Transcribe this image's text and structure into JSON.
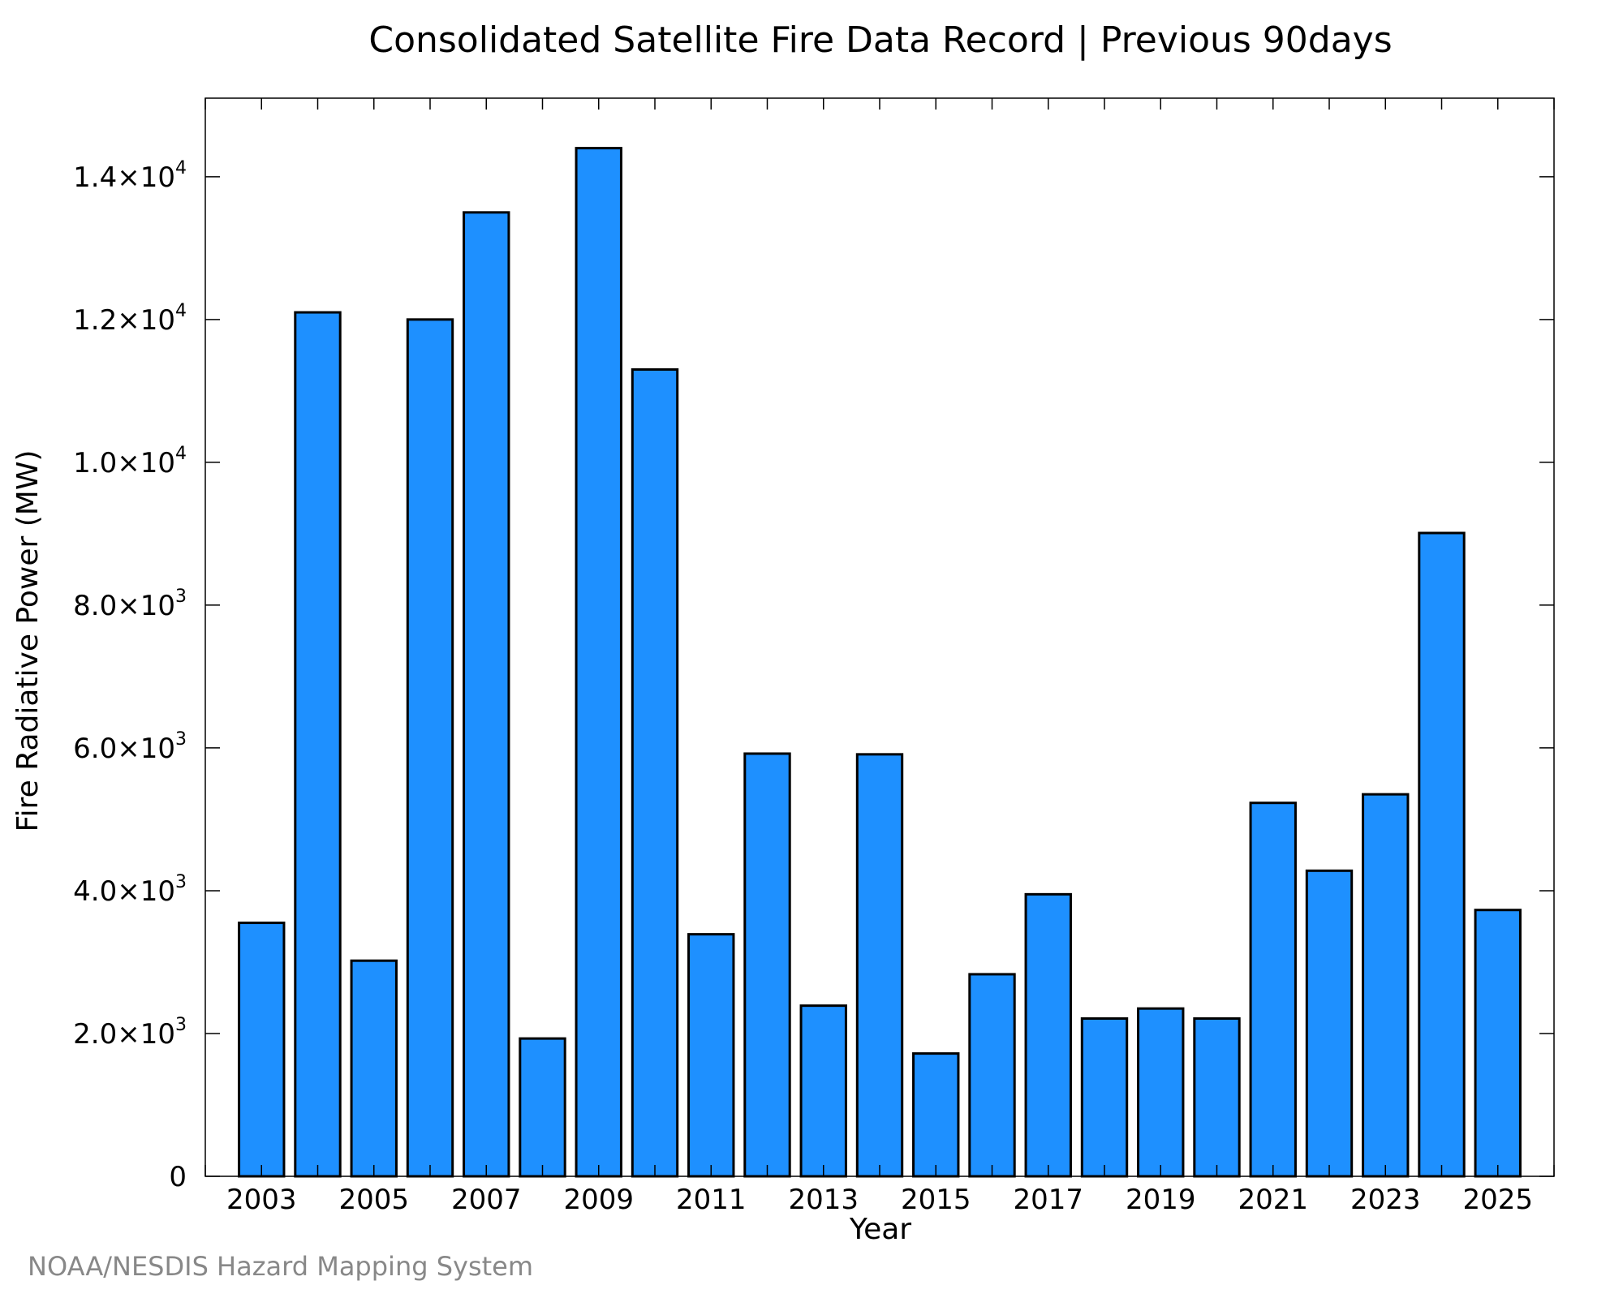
{
  "chart_data": {
    "type": "bar",
    "title": "Consolidated Satellite Fire Data Record | Previous 90days",
    "xlabel": "Year",
    "ylabel": "Fire Radiative Power (MW)",
    "credit": "NOAA/NESDIS Hazard Mapping System",
    "categories": [
      "2003",
      "2004",
      "2005",
      "2006",
      "2007",
      "2008",
      "2009",
      "2010",
      "2011",
      "2012",
      "2013",
      "2014",
      "2015",
      "2016",
      "2017",
      "2018",
      "2019",
      "2020",
      "2021",
      "2022",
      "2023",
      "2024",
      "2025"
    ],
    "x_tick_labels": [
      "2003",
      "2005",
      "2007",
      "2009",
      "2011",
      "2013",
      "2015",
      "2017",
      "2019",
      "2021",
      "2023",
      "2025"
    ],
    "values": [
      3550,
      12100,
      3020,
      12000,
      13500,
      1930,
      14400,
      11300,
      3390,
      5920,
      2390,
      5910,
      1720,
      2830,
      3950,
      2210,
      2350,
      2210,
      5230,
      4280,
      5350,
      9010,
      3730
    ],
    "ylim": [
      0,
      15100
    ],
    "y_ticks": [
      {
        "value": 0,
        "mantissa": "0",
        "exp": ""
      },
      {
        "value": 2000,
        "mantissa": "2.0×10",
        "exp": "3"
      },
      {
        "value": 4000,
        "mantissa": "4.0×10",
        "exp": "3"
      },
      {
        "value": 6000,
        "mantissa": "6.0×10",
        "exp": "3"
      },
      {
        "value": 8000,
        "mantissa": "8.0×10",
        "exp": "3"
      },
      {
        "value": 10000,
        "mantissa": "1.0×10",
        "exp": "4"
      },
      {
        "value": 12000,
        "mantissa": "1.2×10",
        "exp": "4"
      },
      {
        "value": 14000,
        "mantissa": "1.4×10",
        "exp": "4"
      }
    ],
    "grid": false,
    "bar_color": "#1e90ff",
    "bar_edge_color": "#000000"
  }
}
